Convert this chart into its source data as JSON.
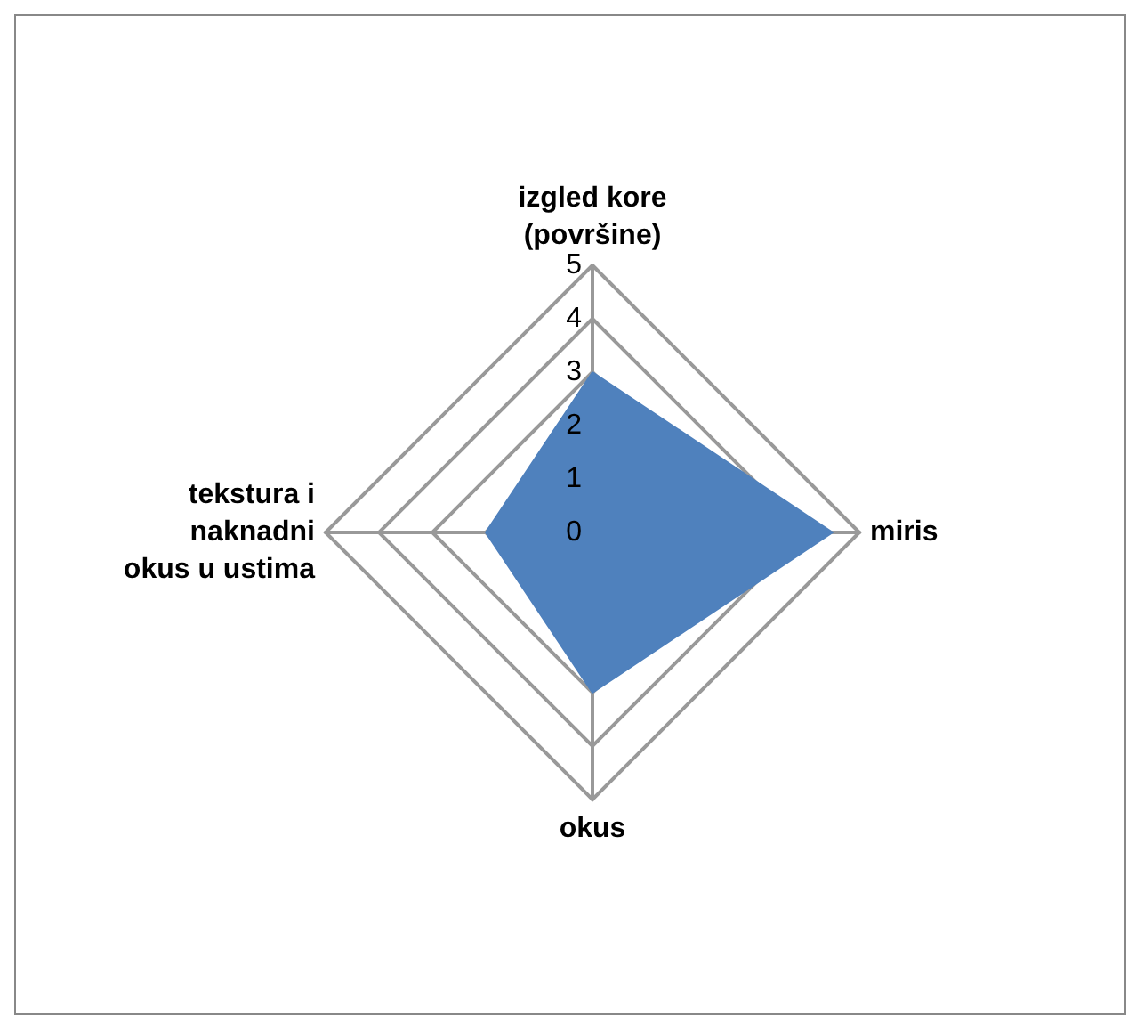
{
  "chart_data": {
    "type": "radar",
    "categories": [
      "izgled kore\n(površine)",
      "miris",
      "okus",
      "tekstura i\nnaknadni\nokus u ustima"
    ],
    "series": [
      {
        "color": "#4f81bd",
        "values": [
          3,
          4.5,
          3,
          2
        ]
      }
    ],
    "ylim": [
      0,
      5
    ],
    "yticks": [
      0,
      1,
      2,
      3,
      4,
      5
    ],
    "grid": true
  }
}
